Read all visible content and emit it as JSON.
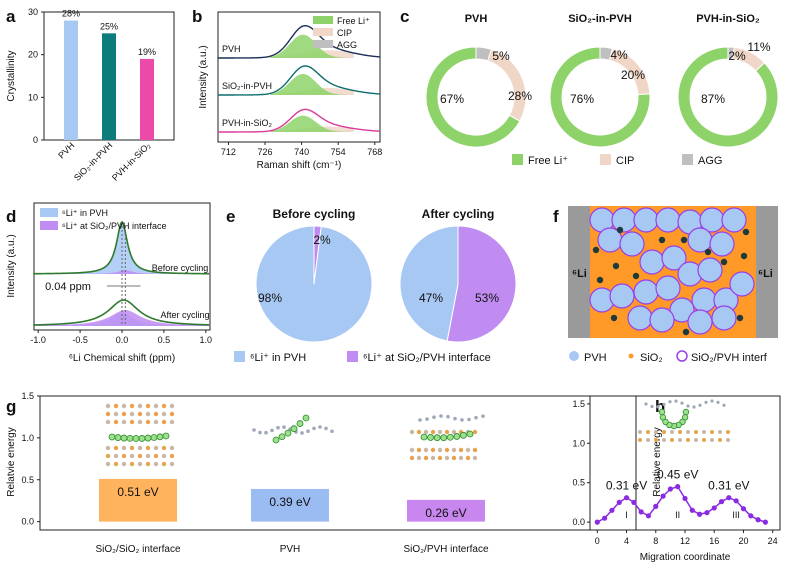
{
  "panel_labels": [
    "a",
    "b",
    "c",
    "d",
    "e",
    "f",
    "g",
    "h"
  ],
  "colors": {
    "light_blue": "#a8c8f4",
    "teal": "#0e7c7b",
    "magenta": "#ec4aa8",
    "free_li": "#8ed36a",
    "cip": "#f0d6c6",
    "agg": "#bfbfbf",
    "pvh_blue": "#a8c8f4",
    "interface_purple": "#c08cf2",
    "orange": "#ff9a28",
    "gray": "#9a9a9a",
    "energy_orange": "#ffb35c",
    "energy_blue": "#9bbcf2",
    "energy_purple": "#c787ef",
    "line_purple": "#8a2be2"
  },
  "chart_data": [
    {
      "id": "a",
      "type": "bar",
      "ylabel": "Crystallinity",
      "categories": [
        "PVH",
        "SiO₂-in-PVH",
        "PVH-in-SiO₂"
      ],
      "values": [
        28,
        25,
        19
      ],
      "value_labels": [
        "28%",
        "25%",
        "19%"
      ],
      "ylim": [
        0,
        30
      ],
      "yticks": [
        "0",
        "10",
        "20",
        "30"
      ]
    },
    {
      "id": "b",
      "type": "line",
      "title": "",
      "xlabel": "Raman shift (cm⁻¹)",
      "ylabel": "Intensity (a.u.)",
      "xlim": [
        708,
        770
      ],
      "xticks": [
        "712",
        "726",
        "740",
        "754",
        "768"
      ],
      "legend": [
        "Free Li⁺",
        "CIP",
        "AGG"
      ],
      "series": [
        {
          "name": "PVH",
          "peak": 741,
          "height": 1.0
        },
        {
          "name": "SiO₂-in-PVH",
          "peak": 741,
          "height": 0.9
        },
        {
          "name": "PVH-in-SiO₂",
          "peak": 741,
          "height": 0.7
        }
      ]
    },
    {
      "id": "c",
      "type": "pie",
      "legend": [
        "Free Li⁺",
        "CIP",
        "AGG"
      ],
      "rings": [
        {
          "title": "PVH",
          "values": [
            67,
            28,
            5
          ],
          "labels": [
            "67%",
            "28%",
            "5%"
          ]
        },
        {
          "title": "SiO₂-in-PVH",
          "values": [
            76,
            20,
            4
          ],
          "labels": [
            "76%",
            "20%",
            "4%"
          ]
        },
        {
          "title": "PVH-in-SiO₂",
          "values": [
            87,
            11,
            2
          ],
          "labels": [
            "87%",
            "11%",
            "2%"
          ]
        }
      ]
    },
    {
      "id": "d",
      "type": "line",
      "xlabel": "⁶Li Chemical shift (ppm)",
      "ylabel": "Intensity (a.u.)",
      "xlim": [
        -1.0,
        1.0
      ],
      "xticks": [
        "-1.0",
        "-0.5",
        "0.0",
        "0.5",
        "1.0"
      ],
      "legend": [
        "⁶Li⁺ in PVH",
        "⁶Li⁺ at SiO₂/PVH interface"
      ],
      "annotations": [
        "Before cycling",
        "After cycling",
        "0.04 ppm"
      ]
    },
    {
      "id": "e",
      "type": "pie",
      "pies": [
        {
          "title": "Before cycling",
          "values": [
            98,
            2
          ],
          "labels": [
            "98%",
            "2%"
          ]
        },
        {
          "title": "After cycling",
          "values": [
            47,
            53
          ],
          "labels": [
            "47%",
            "53%"
          ]
        }
      ],
      "legend": [
        "⁶Li⁺ in PVH",
        "⁶Li⁺ at SiO₂/PVH interface"
      ]
    },
    {
      "id": "g",
      "type": "bar",
      "ylabel": "Relatvie energy",
      "categories": [
        "SiO₂/SiO₂ interface",
        "PVH",
        "SiO₂/PVH interface"
      ],
      "values": [
        0.51,
        0.39,
        0.26
      ],
      "value_labels": [
        "0.51 eV",
        "0.39 eV",
        "0.26 eV"
      ],
      "ylim": [
        0,
        1.5
      ],
      "yticks": [
        "0.0",
        "0.5",
        "1.0",
        "1.5"
      ]
    },
    {
      "id": "h",
      "type": "line",
      "xlabel": "Migration coordinate",
      "ylabel": "Relative energy",
      "xlim": [
        -1,
        25
      ],
      "xticks": [
        "0",
        "4",
        "8",
        "12",
        "16",
        "20",
        "24"
      ],
      "ylim": [
        -0.1,
        1.6
      ],
      "yticks": [
        "0.0",
        "0.5",
        "1.0",
        "1.5"
      ],
      "x": [
        0,
        1,
        2,
        3,
        4,
        5,
        6,
        7,
        8,
        9,
        10,
        11,
        12,
        13,
        14,
        15,
        16,
        17,
        18,
        19,
        20,
        21,
        22,
        23
      ],
      "y": [
        0.0,
        0.05,
        0.15,
        0.25,
        0.31,
        0.25,
        0.13,
        0.08,
        0.2,
        0.33,
        0.42,
        0.45,
        0.3,
        0.15,
        0.1,
        0.12,
        0.18,
        0.26,
        0.31,
        0.27,
        0.17,
        0.08,
        0.03,
        0.0
      ],
      "annotations": [
        "0.31 eV",
        "0.45 eV",
        "0.31 eV"
      ],
      "region_labels": [
        "I",
        "II",
        "III"
      ]
    }
  ],
  "panel_f": {
    "left_label": "⁶Li",
    "right_label": "⁶Li",
    "legend": [
      "PVH",
      "SiO₂",
      "SiO₂/PVH interf"
    ]
  }
}
